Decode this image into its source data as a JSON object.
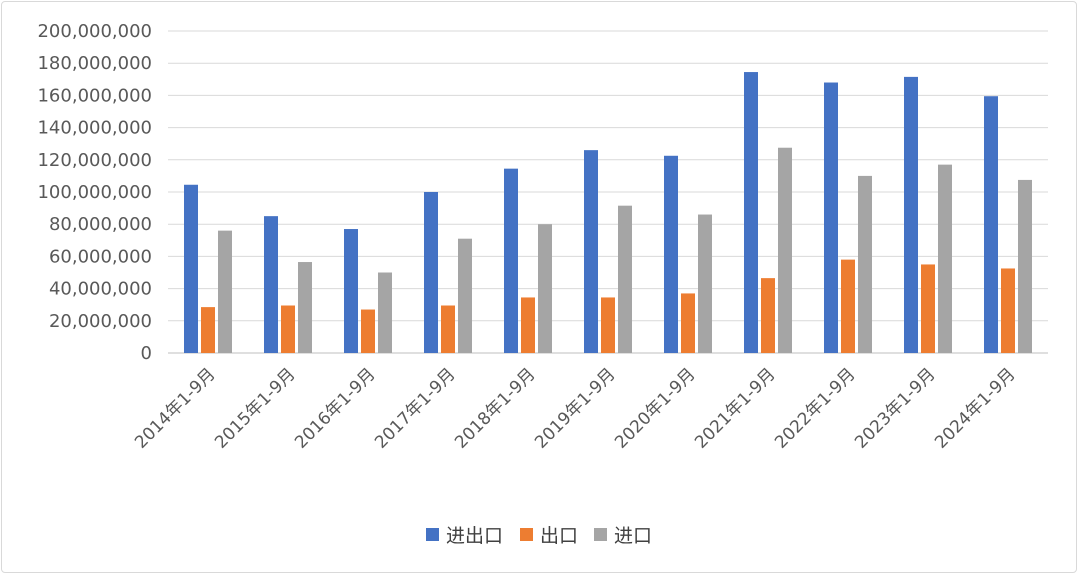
{
  "chart_data": {
    "type": "bar",
    "categories": [
      "2014年1-9月",
      "2015年1-9月",
      "2016年1-9月",
      "2017年1-9月",
      "2018年1-9月",
      "2019年1-9月",
      "2020年1-9月",
      "2021年1-9月",
      "2022年1-9月",
      "2023年1-9月",
      "2024年1-9月"
    ],
    "series": [
      {
        "name": "进出口",
        "color": "#4472c4",
        "values": [
          104500000,
          85000000,
          77000000,
          100000000,
          114500000,
          126000000,
          122500000,
          174500000,
          168000000,
          171500000,
          159500000
        ]
      },
      {
        "name": "出口",
        "color": "#ed7d31",
        "values": [
          28500000,
          29500000,
          27000000,
          29500000,
          34500000,
          34500000,
          37000000,
          46500000,
          58000000,
          55000000,
          52500000
        ]
      },
      {
        "name": "进口",
        "color": "#a5a5a5",
        "values": [
          76000000,
          56500000,
          50000000,
          71000000,
          80000000,
          91500000,
          86000000,
          127500000,
          110000000,
          117000000,
          107500000
        ]
      }
    ],
    "yticks": [
      "0",
      "20,000,000",
      "40,000,000",
      "60,000,000",
      "80,000,000",
      "100,000,000",
      "120,000,000",
      "140,000,000",
      "160,000,000",
      "180,000,000",
      "200,000,000"
    ],
    "ylim": [
      0,
      200000000
    ],
    "grid": true,
    "legend_position": "bottom"
  }
}
